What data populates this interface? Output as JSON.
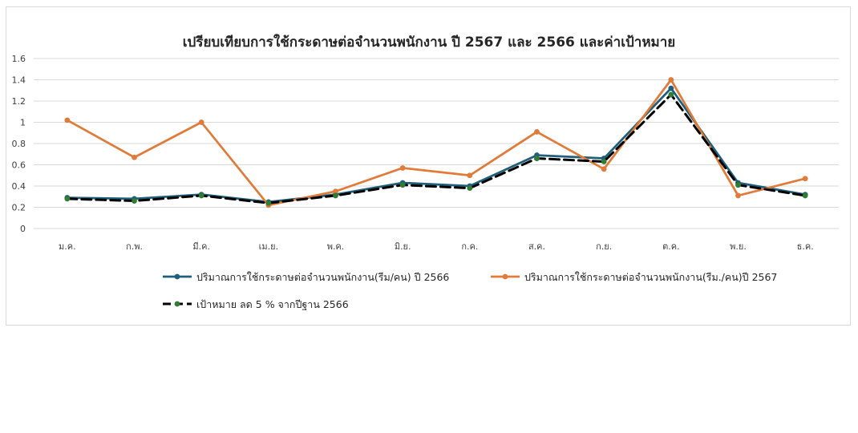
{
  "chart_data": {
    "type": "line",
    "title": "เปรียบเทียบการใช้กระดาษต่อจำนวนพนักงาน ปี 2567 และ 2566 และค่าเป้าหมาย",
    "categories": [
      "ม.ค.",
      "ก.พ.",
      "มี.ค.",
      "เม.ย.",
      "พ.ค.",
      "มิ.ย.",
      "ก.ค.",
      "ส.ค.",
      "ก.ย.",
      "ต.ค.",
      "พ.ย.",
      "ธ.ค."
    ],
    "yticks": [
      "0",
      "0.2",
      "0.4",
      "0.6",
      "0.8",
      "1",
      "1.2",
      "1.4",
      "1.6"
    ],
    "ylim": [
      0,
      1.6
    ],
    "grid": true,
    "legend_position": "bottom",
    "series": [
      {
        "name": "ปริมาณการใช้กระดาษต่อจำนวนพนักงาน(รีม/คน) ปี 2566",
        "color": "#1f5f7a",
        "style": "solid",
        "values": [
          0.29,
          0.28,
          0.32,
          0.25,
          0.32,
          0.43,
          0.4,
          0.69,
          0.66,
          1.32,
          0.43,
          0.32
        ]
      },
      {
        "name": "ปริมาณการใช้กระดาษต่อจำนวนพนักงาน(รีม./คน)ปี 2567",
        "color": "#e07b39",
        "style": "solid",
        "values": [
          1.02,
          0.67,
          1.0,
          0.22,
          0.35,
          0.57,
          0.5,
          0.91,
          0.56,
          1.4,
          0.31,
          0.47
        ]
      },
      {
        "name": "เป้าหมาย  ลด 5 % จากปีฐาน 2566",
        "color": "#000000",
        "marker_color": "#2e7d32",
        "style": "dashed",
        "values": [
          0.28,
          0.26,
          0.31,
          0.24,
          0.31,
          0.41,
          0.38,
          0.66,
          0.63,
          1.26,
          0.41,
          0.31
        ]
      }
    ]
  }
}
